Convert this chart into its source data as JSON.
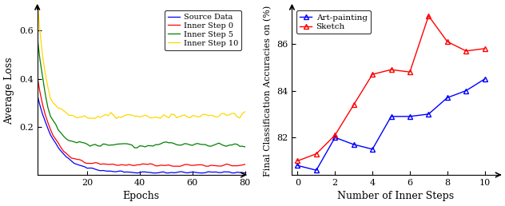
{
  "left_plot": {
    "xlabel": "Epochs",
    "ylabel": "Average Loss",
    "xlim": [
      1,
      80
    ],
    "ylim": [
      0.0,
      0.7
    ],
    "yticks": [
      0.2,
      0.4,
      0.6
    ],
    "xticks": [
      20,
      40,
      60,
      80
    ],
    "curves": [
      {
        "label": "Source Data",
        "color": "blue",
        "seed": 42,
        "a": 0.37,
        "b": 7.0,
        "c": 0.01,
        "noise": 0.003
      },
      {
        "label": "Inner Step 0",
        "color": "red",
        "seed": 43,
        "a": 0.44,
        "b": 5.5,
        "c": 0.04,
        "noise": 0.004
      },
      {
        "label": "Inner Step 5",
        "color": "green",
        "seed": 44,
        "a": 0.58,
        "b": 4.0,
        "c": 0.125,
        "noise": 0.007
      },
      {
        "label": "Inner Step 10",
        "color": "gold",
        "seed": 45,
        "a": 0.68,
        "b": 3.0,
        "c": 0.245,
        "noise": 0.01
      }
    ]
  },
  "right_plot": {
    "xlabel": "Number of Inner Steps",
    "ylabel": "Final Classification Accuracies on (%)",
    "xlim": [
      -0.3,
      10.8
    ],
    "ylim": [
      80.4,
      87.6
    ],
    "yticks": [
      82,
      84,
      86
    ],
    "xticks": [
      0,
      2,
      4,
      6,
      8,
      10
    ],
    "art_painting": {
      "x": [
        0,
        1,
        2,
        3,
        4,
        5,
        6,
        7,
        8,
        9,
        10
      ],
      "y": [
        80.8,
        80.6,
        82.0,
        81.7,
        81.5,
        82.9,
        82.9,
        83.0,
        83.7,
        84.0,
        84.5
      ],
      "color": "blue",
      "label": "Art-painting"
    },
    "sketch": {
      "x": [
        0,
        1,
        2,
        3,
        4,
        5,
        6,
        7,
        8,
        9,
        10
      ],
      "y": [
        81.0,
        81.3,
        82.1,
        83.4,
        84.7,
        84.9,
        84.8,
        87.2,
        86.1,
        85.7,
        85.8
      ],
      "color": "red",
      "label": "Sketch"
    }
  }
}
